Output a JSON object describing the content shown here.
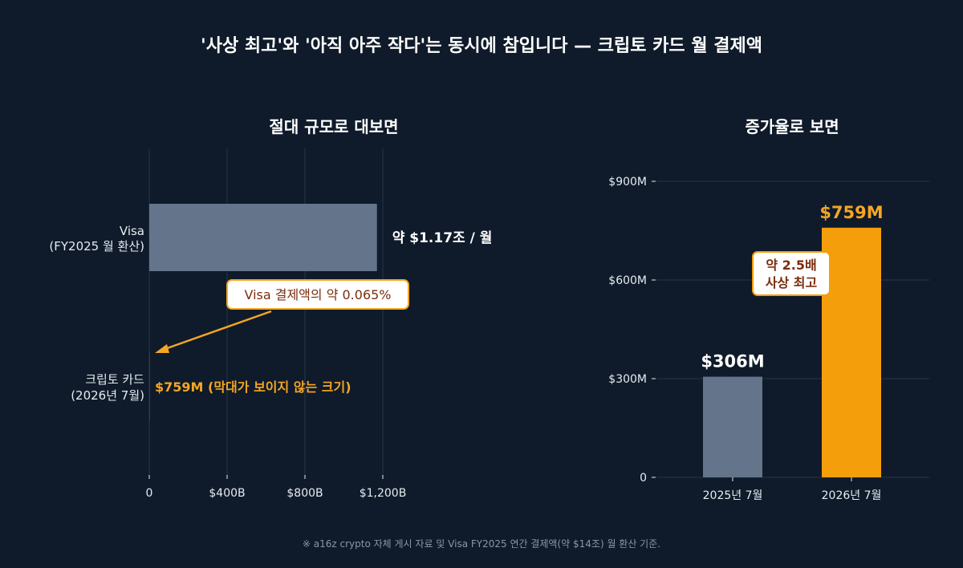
{
  "title": "'사상 최고'와 '아직 아주 작다'는 동시에 참입니다 — 크립토 카드 월 결제액",
  "footnote": "※ a16z crypto 자체 게시 자료 및 Visa FY2025 연간 결제액(약 $14조) 월 환산 기준.",
  "colors": {
    "background": "#0f1b2a",
    "visa_bar": "#64748b",
    "crypto_bar": "#f59e0b",
    "accent_text": "#f5a623",
    "callout_text": "#7a2e0e"
  },
  "chart_data": [
    {
      "type": "bar",
      "orientation": "horizontal",
      "title": "절대 규모로 대보면",
      "x_unit": "USD billions",
      "xlim": [
        0,
        1200
      ],
      "x_ticks": [
        0,
        400,
        800,
        1200
      ],
      "x_tick_labels": [
        "0",
        "$400B",
        "$800B",
        "$1,200B"
      ],
      "categories": [
        {
          "line1": "Visa",
          "line2": "(FY2025 월 환산)"
        },
        {
          "line1": "크립토 카드",
          "line2": "(2026년 7월)"
        }
      ],
      "values": [
        1170,
        0.759
      ],
      "value_labels": [
        "약 $1.17조 / 월",
        "$759M (막대가 보이지 않는 크기)"
      ],
      "callout": "Visa 결제액의 약 0.065%",
      "grid": true
    },
    {
      "type": "bar",
      "orientation": "vertical",
      "title": "증가율로 보면",
      "y_unit": "USD millions",
      "ylim": [
        0,
        900
      ],
      "y_ticks": [
        0,
        300,
        600,
        900
      ],
      "y_tick_labels": [
        "0",
        "$300M",
        "$600M",
        "$900M"
      ],
      "categories": [
        "2025년 7월",
        "2026년 7월"
      ],
      "values": [
        306,
        759
      ],
      "value_labels": [
        "$306M",
        "$759M"
      ],
      "callout": {
        "line1": "약 2.5배",
        "line2": "사상 최고"
      },
      "grid": true
    }
  ]
}
